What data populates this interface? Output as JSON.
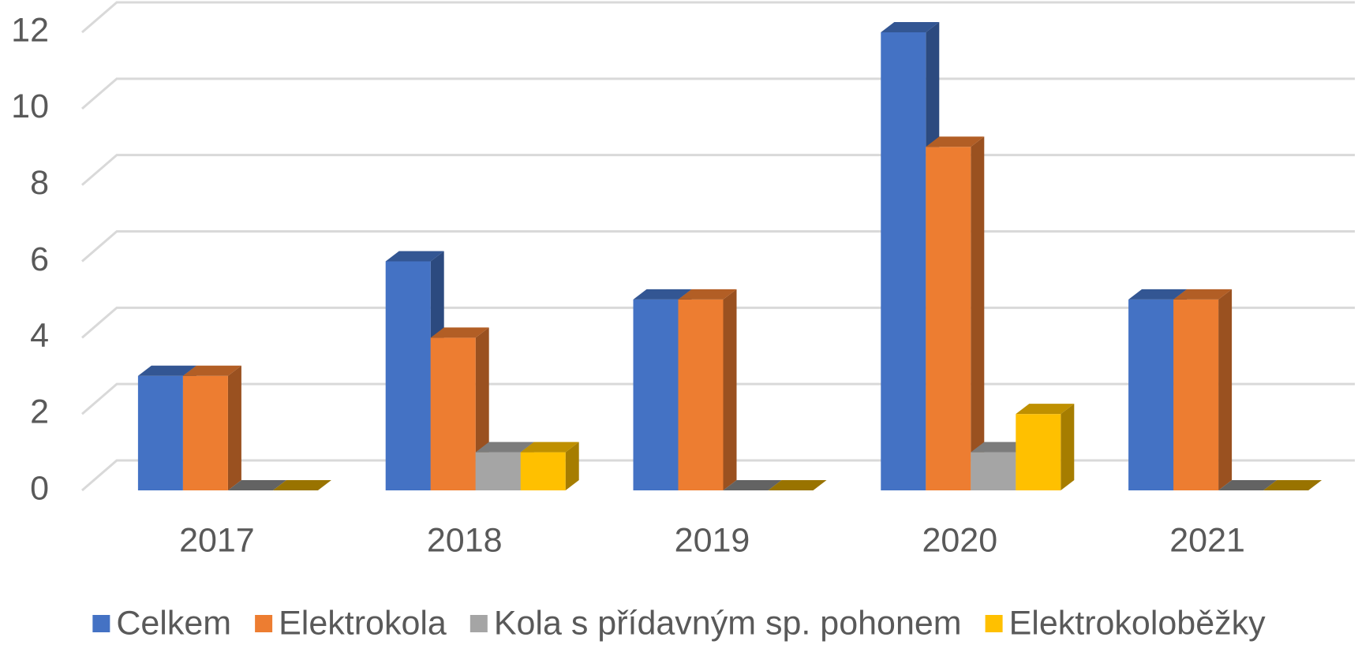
{
  "chart_data": {
    "type": "bar3d",
    "categories": [
      "2017",
      "2018",
      "2019",
      "2020",
      "2021"
    ],
    "series": [
      {
        "name": "Celkem",
        "color": "#4472c4",
        "values": [
          3,
          6,
          5,
          12,
          5
        ]
      },
      {
        "name": "Elektrokola",
        "color": "#ed7d31",
        "values": [
          3,
          4,
          5,
          9,
          5
        ]
      },
      {
        "name": "Kola s přídavným sp. pohonem",
        "color": "#a5a5a5",
        "values": [
          0,
          1,
          0,
          1,
          0
        ]
      },
      {
        "name": "Elektrokoloběžky",
        "color": "#ffc000",
        "values": [
          0,
          1,
          0,
          2,
          0
        ]
      }
    ],
    "ylim": [
      0,
      12
    ],
    "yticks": [
      0,
      2,
      4,
      6,
      8,
      10,
      12
    ],
    "grid": true,
    "legend": "bottom"
  }
}
